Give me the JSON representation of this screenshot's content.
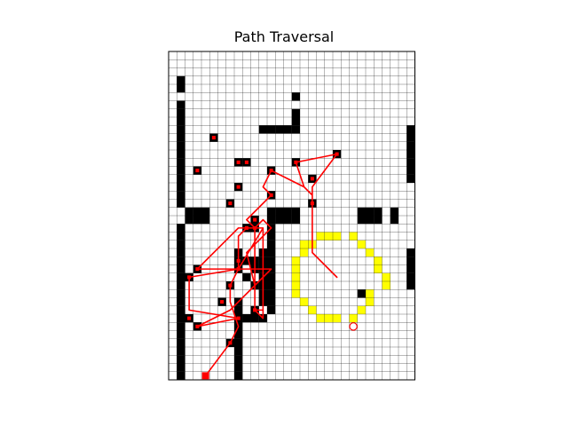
{
  "chart_data": {
    "type": "grid-path",
    "title": "Path Traversal",
    "grid": {
      "cols": 30,
      "rows": 40
    },
    "colors": {
      "cell_free": "#ffffff",
      "grid_line": "#000000",
      "obstacle": "#000000",
      "highlight": "#ffff00",
      "path": "#ff0000",
      "visited": "#ff0000",
      "start": "#ff0000",
      "goal": "#ff0000"
    },
    "obstacles": [
      [
        1,
        3
      ],
      [
        1,
        4
      ],
      [
        1,
        6
      ],
      [
        1,
        7
      ],
      [
        1,
        8
      ],
      [
        1,
        9
      ],
      [
        1,
        10
      ],
      [
        1,
        11
      ],
      [
        1,
        12
      ],
      [
        1,
        13
      ],
      [
        1,
        14
      ],
      [
        1,
        15
      ],
      [
        1,
        16
      ],
      [
        1,
        17
      ],
      [
        1,
        18
      ],
      [
        1,
        21
      ],
      [
        1,
        22
      ],
      [
        1,
        23
      ],
      [
        1,
        24
      ],
      [
        1,
        25
      ],
      [
        1,
        26
      ],
      [
        1,
        27
      ],
      [
        1,
        28
      ],
      [
        1,
        29
      ],
      [
        1,
        30
      ],
      [
        1,
        31
      ],
      [
        1,
        32
      ],
      [
        1,
        33
      ],
      [
        1,
        34
      ],
      [
        1,
        35
      ],
      [
        1,
        36
      ],
      [
        1,
        37
      ],
      [
        1,
        38
      ],
      [
        1,
        39
      ],
      [
        2,
        19
      ],
      [
        3,
        19
      ],
      [
        4,
        19
      ],
      [
        2,
        20
      ],
      [
        3,
        20
      ],
      [
        4,
        20
      ],
      [
        15,
        5
      ],
      [
        15,
        7
      ],
      [
        15,
        8
      ],
      [
        11,
        9
      ],
      [
        12,
        9
      ],
      [
        13,
        9
      ],
      [
        14,
        9
      ],
      [
        15,
        9
      ],
      [
        29,
        9
      ],
      [
        29,
        10
      ],
      [
        29,
        11
      ],
      [
        29,
        12
      ],
      [
        29,
        13
      ],
      [
        29,
        14
      ],
      [
        29,
        15
      ],
      [
        29,
        24
      ],
      [
        29,
        25
      ],
      [
        29,
        26
      ],
      [
        29,
        27
      ],
      [
        29,
        28
      ],
      [
        12,
        19
      ],
      [
        13,
        19
      ],
      [
        14,
        19
      ],
      [
        15,
        19
      ],
      [
        12,
        20
      ],
      [
        13,
        20
      ],
      [
        14,
        20
      ],
      [
        15,
        20
      ],
      [
        23,
        19
      ],
      [
        24,
        19
      ],
      [
        25,
        19
      ],
      [
        23,
        20
      ],
      [
        24,
        20
      ],
      [
        25,
        20
      ],
      [
        27,
        19
      ],
      [
        27,
        20
      ],
      [
        12,
        21
      ],
      [
        12,
        22
      ],
      [
        12,
        23
      ],
      [
        12,
        24
      ],
      [
        12,
        25
      ],
      [
        12,
        26
      ],
      [
        12,
        27
      ],
      [
        12,
        28
      ],
      [
        12,
        29
      ],
      [
        12,
        30
      ],
      [
        12,
        31
      ],
      [
        11,
        24
      ],
      [
        11,
        25
      ],
      [
        11,
        26
      ],
      [
        11,
        27
      ],
      [
        11,
        28
      ],
      [
        11,
        29
      ],
      [
        11,
        30
      ],
      [
        8,
        24
      ],
      [
        9,
        25
      ],
      [
        10,
        25
      ],
      [
        10,
        26
      ],
      [
        9,
        27
      ],
      [
        10,
        28
      ],
      [
        8,
        30
      ],
      [
        8,
        31
      ],
      [
        8,
        32
      ],
      [
        8,
        33
      ],
      [
        8,
        34
      ],
      [
        8,
        35
      ],
      [
        8,
        36
      ],
      [
        8,
        37
      ],
      [
        8,
        38
      ],
      [
        8,
        39
      ],
      [
        9,
        32
      ],
      [
        10,
        32
      ],
      [
        11,
        32
      ],
      [
        23,
        29
      ]
    ],
    "highlight_cells": [
      [
        18,
        22
      ],
      [
        19,
        22
      ],
      [
        20,
        22
      ],
      [
        22,
        22
      ],
      [
        16,
        23
      ],
      [
        17,
        23
      ],
      [
        23,
        23
      ],
      [
        16,
        24
      ],
      [
        24,
        24
      ],
      [
        15,
        25
      ],
      [
        25,
        25
      ],
      [
        15,
        26
      ],
      [
        25,
        26
      ],
      [
        15,
        27
      ],
      [
        26,
        27
      ],
      [
        15,
        28
      ],
      [
        26,
        28
      ],
      [
        15,
        29
      ],
      [
        24,
        29
      ],
      [
        16,
        30
      ],
      [
        24,
        30
      ],
      [
        17,
        31
      ],
      [
        23,
        31
      ],
      [
        18,
        32
      ],
      [
        19,
        32
      ],
      [
        20,
        32
      ],
      [
        22,
        32
      ]
    ],
    "visited_cells": [
      [
        5,
        10
      ],
      [
        8,
        13
      ],
      [
        9,
        13
      ],
      [
        3,
        14
      ],
      [
        8,
        16
      ],
      [
        12,
        14
      ],
      [
        15,
        13
      ],
      [
        17,
        15
      ],
      [
        20,
        12
      ],
      [
        12,
        17
      ],
      [
        7,
        18
      ],
      [
        17,
        18
      ],
      [
        10,
        20
      ],
      [
        9,
        21
      ],
      [
        10,
        21
      ],
      [
        8,
        25
      ],
      [
        3,
        26
      ],
      [
        8,
        26
      ],
      [
        2,
        27
      ],
      [
        7,
        28
      ],
      [
        6,
        30
      ],
      [
        10,
        31
      ],
      [
        2,
        32
      ],
      [
        8,
        32
      ],
      [
        3,
        33
      ],
      [
        7,
        35
      ]
    ],
    "path": [
      [
        20,
        27
      ],
      [
        17,
        24
      ],
      [
        17,
        17
      ],
      [
        16,
        16
      ],
      [
        15,
        13
      ],
      [
        20,
        12
      ],
      [
        17,
        16
      ],
      [
        17,
        17
      ],
      [
        16,
        16
      ],
      [
        12,
        14
      ],
      [
        11,
        16
      ],
      [
        12,
        17
      ],
      [
        11,
        18
      ],
      [
        9,
        20
      ],
      [
        10,
        21
      ],
      [
        9,
        21
      ],
      [
        8,
        22
      ],
      [
        8,
        24
      ],
      [
        8,
        26
      ],
      [
        11,
        21
      ],
      [
        11,
        32
      ],
      [
        10,
        31
      ],
      [
        10,
        21
      ],
      [
        11,
        20
      ],
      [
        12,
        21
      ],
      [
        9,
        24
      ],
      [
        10,
        28
      ],
      [
        10,
        31
      ],
      [
        11,
        31
      ],
      [
        11,
        21
      ],
      [
        8,
        21
      ],
      [
        3,
        26
      ],
      [
        12,
        26
      ],
      [
        7,
        31
      ],
      [
        3,
        33
      ],
      [
        8,
        32
      ],
      [
        2,
        31
      ],
      [
        2,
        27
      ],
      [
        8,
        26
      ],
      [
        7,
        28
      ],
      [
        7,
        30
      ],
      [
        8,
        33
      ],
      [
        7,
        35
      ],
      [
        4,
        39
      ]
    ],
    "start": [
      4,
      39
    ],
    "goal": [
      22,
      33
    ]
  }
}
